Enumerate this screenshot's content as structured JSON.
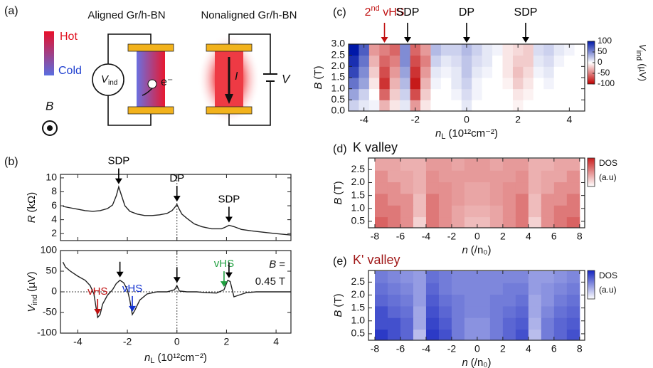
{
  "diagram": {
    "label": "(a)",
    "aligned": "Aligned Gr/h-BN",
    "nonaligned": "Nonaligned Gr/h-BN",
    "hot": "Hot",
    "cold": "Cold",
    "field": "B",
    "voltmeter_symbol": "V",
    "voltmeter_sub": "ind",
    "electron": "e⁻",
    "current": "I",
    "bias": "V"
  },
  "chart_data": [
    {
      "type": "line",
      "panel": "(b)",
      "x": [
        -4.6,
        -4.3,
        -4.0,
        -3.7,
        -3.4,
        -3.1,
        -2.8,
        -2.6,
        -2.45,
        -2.35,
        -2.25,
        -2.1,
        -1.9,
        -1.6,
        -1.3,
        -1.0,
        -0.7,
        -0.4,
        -0.2,
        -0.08,
        0,
        0.08,
        0.2,
        0.4,
        0.7,
        1.0,
        1.4,
        1.8,
        2.0,
        2.1,
        2.3,
        2.6,
        3.0,
        3.5,
        4.0,
        4.6
      ],
      "values": [
        5.9,
        5.7,
        5.5,
        5.3,
        5.2,
        5.3,
        5.6,
        6.1,
        7.4,
        8.7,
        7.6,
        6.0,
        5.2,
        4.8,
        4.6,
        4.6,
        4.7,
        4.9,
        5.3,
        5.8,
        6.2,
        5.6,
        4.8,
        4.2,
        3.4,
        3.0,
        2.7,
        2.7,
        3.0,
        3.2,
        3.0,
        2.6,
        2.4,
        2.2,
        2.0,
        1.8
      ],
      "color": "#222222",
      "ylabel": {
        "symbol": "R",
        "unit": "(kΩ)"
      },
      "xlim": [
        -4.7,
        4.6
      ],
      "ylim": [
        1,
        10.5
      ],
      "xticks": [
        -4,
        -2,
        0,
        2,
        4
      ],
      "yticks": [
        2,
        4,
        6,
        8,
        10
      ],
      "vline": 0,
      "annotations": [
        {
          "text": "SDP",
          "x": -2.35
        },
        {
          "text": "DP",
          "x": 0
        },
        {
          "text": "SDP",
          "x": 2.1
        }
      ]
    },
    {
      "type": "line",
      "x": [
        -4.6,
        -4.5,
        -4.3,
        -4.0,
        -3.7,
        -3.5,
        -3.35,
        -3.2,
        -3.1,
        -3.0,
        -2.8,
        -2.6,
        -2.45,
        -2.3,
        -2.15,
        -2.0,
        -1.9,
        -1.8,
        -1.7,
        -1.5,
        -1.2,
        -0.8,
        -0.4,
        -0.1,
        0,
        0.1,
        0.4,
        0.8,
        1.2,
        1.6,
        1.9,
        2.05,
        2.15,
        2.3,
        2.5,
        2.8,
        3.2,
        3.8,
        4.6
      ],
      "values": [
        72,
        60,
        50,
        38,
        28,
        15,
        -5,
        -62,
        -55,
        -30,
        -8,
        5,
        20,
        28,
        22,
        5,
        -20,
        -55,
        -45,
        -20,
        -5,
        0,
        0,
        5,
        15,
        2,
        0,
        0,
        -2,
        -3,
        5,
        28,
        25,
        -12,
        -8,
        -2,
        0,
        0,
        0
      ],
      "color": "#222222",
      "ylabel": {
        "symbol": "V",
        "sub": "ind",
        "unit": "(µV)"
      },
      "xlabel": {
        "symbol": "n",
        "sub": "L",
        "unit": "(10¹²cm⁻²)"
      },
      "xlim": [
        -4.7,
        4.6
      ],
      "ylim": [
        -100,
        100
      ],
      "xticks": [
        -4,
        -2,
        0,
        2,
        4
      ],
      "yticks": [
        -100,
        -50,
        0,
        50,
        100
      ],
      "vline": 0,
      "hline": 0,
      "annotations": [
        {
          "text": "vHS",
          "x": -3.2,
          "color": "#c01010"
        },
        {
          "x": -2.3,
          "color": "#000000"
        },
        {
          "text": "vHS",
          "x": -1.8,
          "color": "#1030d0"
        },
        {
          "x": 0,
          "color": "#000000"
        },
        {
          "text": "vHS",
          "x": 1.9,
          "color": "#20a040"
        },
        {
          "x": 2.1,
          "color": "#000000"
        }
      ],
      "note": {
        "symbol": "B",
        "rest": "=",
        "value": "0.45 T"
      }
    },
    {
      "type": "heatmap",
      "panel": "(c)",
      "x": [
        -4.4,
        -4.0,
        -3.6,
        -3.2,
        -2.8,
        -2.4,
        -2.0,
        -1.6,
        -1.2,
        -0.8,
        -0.4,
        0,
        0.4,
        0.8,
        1.2,
        1.6,
        2.0,
        2.4,
        2.8,
        3.2,
        3.6,
        4.0,
        4.4
      ],
      "y": [
        0.25,
        0.75,
        1.25,
        1.75,
        2.25,
        2.75
      ],
      "values": [
        [
          20,
          10,
          5,
          -30,
          -10,
          10,
          -40,
          -10,
          0,
          0,
          0,
          10,
          0,
          0,
          0,
          0,
          -5,
          0,
          0,
          0,
          0,
          0,
          0
        ],
        [
          40,
          20,
          0,
          -60,
          -20,
          20,
          -70,
          -20,
          0,
          0,
          5,
          15,
          5,
          0,
          0,
          0,
          -10,
          -5,
          0,
          0,
          0,
          0,
          0
        ],
        [
          60,
          40,
          -10,
          -80,
          -30,
          30,
          -90,
          -30,
          5,
          0,
          10,
          20,
          5,
          0,
          0,
          -5,
          -20,
          -10,
          0,
          5,
          0,
          0,
          0
        ],
        [
          80,
          50,
          -20,
          -70,
          -40,
          40,
          -80,
          -40,
          10,
          5,
          10,
          25,
          10,
          5,
          0,
          -10,
          -25,
          -15,
          5,
          10,
          0,
          0,
          0
        ],
        [
          90,
          60,
          -30,
          -60,
          -50,
          50,
          -70,
          -50,
          20,
          10,
          15,
          25,
          15,
          10,
          0,
          -10,
          -20,
          -20,
          10,
          15,
          5,
          0,
          0
        ],
        [
          100,
          70,
          -40,
          -50,
          -60,
          50,
          -60,
          -40,
          30,
          20,
          20,
          30,
          20,
          10,
          5,
          -10,
          -15,
          -20,
          15,
          20,
          10,
          5,
          0
        ]
      ],
      "xlim": [
        -4.6,
        4.6
      ],
      "ylim": [
        0,
        3
      ],
      "xticks": [
        -4,
        -2,
        0,
        2,
        4
      ],
      "yticks": [
        {
          "value": 0,
          "label": "0.0"
        },
        0.5,
        {
          "value": 1,
          "label": "1.0"
        },
        1.5,
        {
          "value": 2,
          "label": "2.0"
        },
        2.5,
        {
          "value": 3,
          "label": "3.0"
        }
      ],
      "xlabel": {
        "symbol": "n",
        "sub": "L",
        "unit": "(10¹²cm⁻²)"
      },
      "ylabel": {
        "symbol": "B",
        "unit": "(T)"
      },
      "clim": [
        -100,
        100
      ],
      "cticks": [
        -100,
        -50,
        0,
        50,
        100
      ],
      "colors": [
        "#c00000",
        "#ffffff",
        "#0018a8"
      ],
      "colorbar_label": {
        "symbol": "V",
        "sub": "ind",
        "unit": "(µV)"
      },
      "annotations": [
        {
          "text": "2",
          "sup": "nd",
          "after": " vHS",
          "x": -3.2,
          "color": "#c01010"
        },
        {
          "text": "SDP",
          "x": -2.3
        },
        {
          "text": "DP",
          "x": 0
        },
        {
          "text": "SDP",
          "x": 2.3
        }
      ]
    },
    {
      "type": "heatmap",
      "panel": "(d)",
      "title": "K valley",
      "title_color": "#111111",
      "x": [
        -7.5,
        -6.5,
        -5.5,
        -4.5,
        -3.5,
        -2.5,
        -1.5,
        -0.5,
        0.5,
        1.5,
        2.5,
        3.5,
        4.5,
        5.5,
        6.5,
        7.5
      ],
      "y": [
        0.45,
        0.9,
        1.35,
        1.8,
        2.25,
        2.7
      ],
      "values": [
        [
          0.7,
          0.6,
          0.5,
          0.2,
          0.6,
          0.5,
          0.4,
          0.3,
          0.3,
          0.4,
          0.5,
          0.6,
          0.2,
          0.5,
          0.6,
          0.7
        ],
        [
          0.6,
          0.6,
          0.5,
          0.3,
          0.6,
          0.5,
          0.4,
          0.35,
          0.35,
          0.4,
          0.5,
          0.6,
          0.3,
          0.5,
          0.6,
          0.6
        ],
        [
          0.6,
          0.5,
          0.5,
          0.3,
          0.6,
          0.5,
          0.45,
          0.4,
          0.4,
          0.45,
          0.5,
          0.6,
          0.3,
          0.5,
          0.5,
          0.6
        ],
        [
          0.5,
          0.5,
          0.4,
          0.35,
          0.5,
          0.5,
          0.45,
          0.4,
          0.4,
          0.45,
          0.5,
          0.5,
          0.35,
          0.4,
          0.5,
          0.5
        ],
        [
          0.5,
          0.4,
          0.4,
          0.35,
          0.5,
          0.45,
          0.45,
          0.45,
          0.45,
          0.45,
          0.45,
          0.5,
          0.35,
          0.4,
          0.4,
          0.5
        ],
        [
          0.4,
          0.4,
          0.35,
          0.35,
          0.45,
          0.45,
          0.4,
          0.45,
          0.45,
          0.4,
          0.45,
          0.45,
          0.35,
          0.35,
          0.4,
          0.4
        ]
      ],
      "xlim": [
        -8.5,
        8.4
      ],
      "ylim": [
        0.25,
        2.95
      ],
      "xticks": [
        -8,
        -6,
        -4,
        -2,
        0,
        2,
        4,
        6,
        8
      ],
      "yticks": [
        0.5,
        {
          "value": 1,
          "label": "1.0"
        },
        1.5,
        {
          "value": 2,
          "label": "2.0"
        },
        2.5
      ],
      "xlabel": {
        "symbol": "n",
        "unit": "(/n₀)"
      },
      "ylabel": {
        "symbol": "B",
        "unit": "(T)"
      },
      "clim": [
        0,
        1
      ],
      "colors": [
        "#ffffff",
        "#c81e1e"
      ],
      "colorbar_label": {
        "text": "DOS",
        "unit": "(a.u)"
      }
    },
    {
      "type": "heatmap",
      "panel": "(e)",
      "title": "K' valley",
      "title_color": "#a01818",
      "x": [
        -7.5,
        -6.5,
        -5.5,
        -4.5,
        -3.5,
        -2.5,
        -1.5,
        -0.5,
        0.5,
        1.5,
        2.5,
        3.5,
        4.5,
        5.5,
        6.5,
        7.5
      ],
      "y": [
        0.45,
        0.9,
        1.35,
        1.8,
        2.25,
        2.7
      ],
      "values": [
        [
          0.9,
          0.8,
          0.7,
          0.3,
          0.9,
          0.8,
          0.6,
          0.5,
          0.5,
          0.6,
          0.7,
          0.8,
          0.3,
          0.6,
          0.7,
          0.8
        ],
        [
          0.8,
          0.8,
          0.7,
          0.4,
          0.85,
          0.75,
          0.6,
          0.5,
          0.5,
          0.6,
          0.7,
          0.75,
          0.35,
          0.6,
          0.7,
          0.75
        ],
        [
          0.8,
          0.7,
          0.65,
          0.4,
          0.8,
          0.7,
          0.6,
          0.55,
          0.55,
          0.6,
          0.65,
          0.7,
          0.4,
          0.55,
          0.65,
          0.7
        ],
        [
          0.7,
          0.65,
          0.6,
          0.45,
          0.75,
          0.65,
          0.6,
          0.55,
          0.55,
          0.6,
          0.6,
          0.65,
          0.4,
          0.5,
          0.6,
          0.65
        ],
        [
          0.65,
          0.6,
          0.55,
          0.45,
          0.7,
          0.6,
          0.55,
          0.55,
          0.55,
          0.55,
          0.6,
          0.6,
          0.45,
          0.5,
          0.55,
          0.6
        ],
        [
          0.6,
          0.55,
          0.5,
          0.45,
          0.65,
          0.6,
          0.55,
          0.55,
          0.55,
          0.55,
          0.55,
          0.55,
          0.45,
          0.45,
          0.5,
          0.55
        ]
      ],
      "xlim": [
        -8.5,
        8.4
      ],
      "ylim": [
        0.25,
        2.95
      ],
      "xticks": [
        -8,
        -6,
        -4,
        -2,
        0,
        2,
        4,
        6,
        8
      ],
      "yticks": [
        0.5,
        {
          "value": 1,
          "label": "1.0"
        },
        1.5,
        {
          "value": 2,
          "label": "2.0"
        },
        2.5
      ],
      "xlabel": {
        "symbol": "n",
        "unit": "(/n₀)"
      },
      "ylabel": {
        "symbol": "B",
        "unit": "(T)"
      },
      "clim": [
        0,
        1
      ],
      "colors": [
        "#ffffff",
        "#1424c0"
      ],
      "colorbar_label": {
        "text": "DOS",
        "unit": "(a.u)"
      }
    }
  ]
}
